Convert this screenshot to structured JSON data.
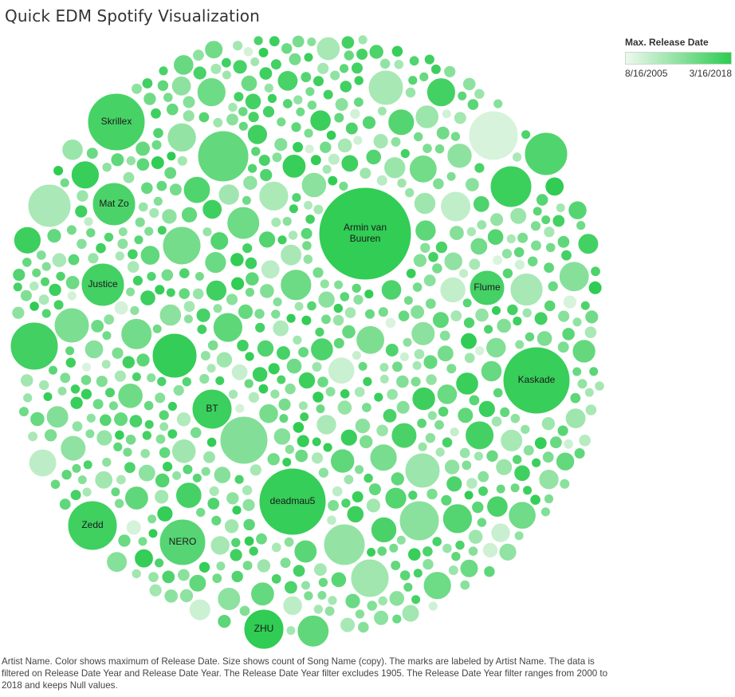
{
  "title": "Quick EDM Spotify Visualization",
  "legend": {
    "title": "Max. Release Date",
    "min_label": "8/16/2005",
    "max_label": "3/16/2018",
    "color_min": "#eef8ee",
    "color_max": "#2ecc52"
  },
  "caption": "Artist Name.  Color shows maximum of  Release Date.  Size shows count of Song Name (copy).  The marks are labeled by Artist Name. The data is filtered on Release Date Year and Release Date Year. The Release Date Year filter excludes 1905. The Release Date Year filter ranges from 2000 to 2018 and keeps Null values.",
  "chart_data": {
    "type": "packed-bubble",
    "title": "Quick EDM Spotify Visualization",
    "color_measure": "Max. Release Date",
    "size_measure": "count of Song Name (copy)",
    "label_field": "Artist Name",
    "labeled_bubbles": [
      {
        "label": "Armin van Buuren",
        "lines": [
          "Armin van",
          "Buuren"
        ],
        "count": 100,
        "max_release": "2018-01-01"
      },
      {
        "label": "deadmau5",
        "lines": [
          "deadmau5"
        ],
        "count": 45,
        "max_release": "2017-10-01"
      },
      {
        "label": "Kaskade",
        "lines": [
          "Kaskade"
        ],
        "count": 42,
        "max_release": "2017-08-01"
      },
      {
        "label": "Skrillex",
        "lines": [
          "Skrillex"
        ],
        "count": 33,
        "max_release": "2016-08-01"
      },
      {
        "label": "Zedd",
        "lines": [
          "Zedd"
        ],
        "count": 25,
        "max_release": "2017-02-01"
      },
      {
        "label": "NERO",
        "lines": [
          "NERO"
        ],
        "count": 22,
        "max_release": "2015-07-01"
      },
      {
        "label": "Mat Zo",
        "lines": [
          "Mat Zo"
        ],
        "count": 20,
        "max_release": "2016-05-01"
      },
      {
        "label": "Justice",
        "lines": [
          "Justice"
        ],
        "count": 18,
        "max_release": "2016-11-01"
      },
      {
        "label": "BT",
        "lines": [
          "BT"
        ],
        "count": 15,
        "max_release": "2017-05-01"
      },
      {
        "label": "ZHU",
        "lines": [
          "ZHU"
        ],
        "count": 15,
        "max_release": "2018-02-01"
      },
      {
        "label": "Flume",
        "lines": [
          "Flume"
        ],
        "count": 14,
        "max_release": "2016-09-01"
      }
    ]
  }
}
